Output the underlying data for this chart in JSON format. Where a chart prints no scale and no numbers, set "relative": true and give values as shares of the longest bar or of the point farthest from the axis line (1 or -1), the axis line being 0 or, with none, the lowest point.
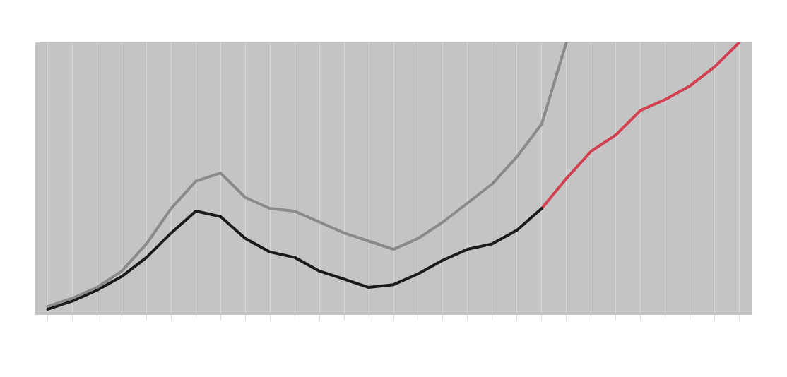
{
  "chart_data": {
    "type": "line",
    "relative": true,
    "grid": "x",
    "marker": "none",
    "line_style": "solid",
    "categories": [
      null,
      null,
      null,
      null,
      null,
      null,
      null,
      null,
      null,
      null,
      null,
      null,
      null,
      null,
      null,
      null,
      null,
      null,
      null,
      null,
      null,
      null,
      null,
      null,
      null,
      null,
      null,
      null,
      null
    ],
    "series": [
      {
        "color": "#8a8a8a",
        "values": [
          0.03,
          0.06,
          0.1,
          0.16,
          0.26,
          0.39,
          0.49,
          0.52,
          0.43,
          0.39,
          0.38,
          0.34,
          0.3,
          0.27,
          0.24,
          0.28,
          0.34,
          0.41,
          0.48,
          0.58,
          0.7,
          1,
          null,
          null,
          null,
          null,
          null,
          null,
          null
        ]
      },
      {
        "color": "#1a1a1a",
        "values": [
          0.02,
          0.05,
          0.09,
          0.14,
          0.21,
          0.3,
          0.38,
          0.36,
          0.28,
          0.23,
          0.21,
          0.16,
          0.13,
          0.1,
          0.11,
          0.15,
          0.2,
          0.24,
          0.26,
          0.31,
          0.39,
          null,
          null,
          null,
          null,
          null,
          null,
          null,
          null
        ]
      },
      {
        "color": "#d04050",
        "values": [
          null,
          null,
          null,
          null,
          null,
          null,
          null,
          null,
          null,
          null,
          null,
          null,
          null,
          null,
          null,
          null,
          null,
          null,
          null,
          null,
          0.39,
          0.5,
          0.6,
          0.66,
          0.75,
          0.79,
          0.84,
          0.91,
          1
        ]
      }
    ]
  }
}
